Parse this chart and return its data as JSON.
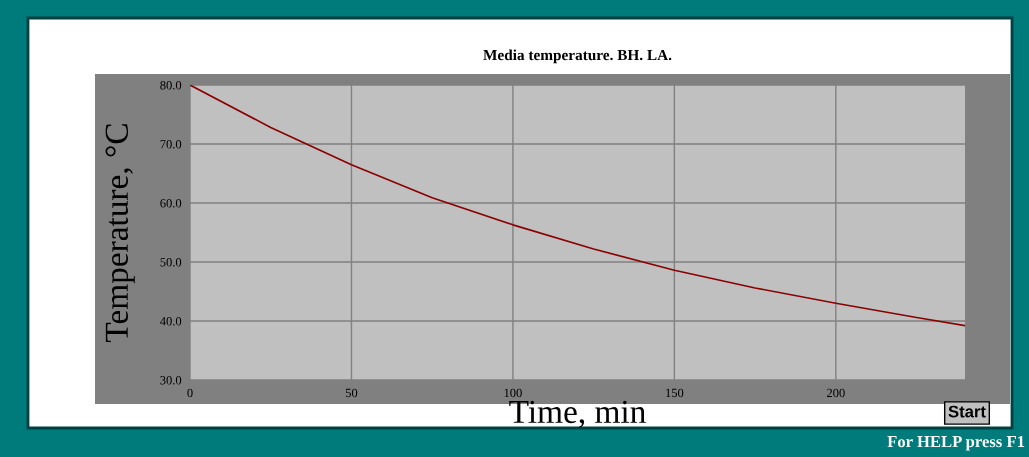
{
  "chart_data": {
    "type": "line",
    "title": "Media temperature. BH. LA.",
    "xlabel": "Time, min",
    "ylabel": "Temperature, °C",
    "x": [
      0,
      25,
      50,
      75,
      100,
      125,
      150,
      175,
      200,
      225,
      240
    ],
    "series": [
      {
        "color": "#8b0000",
        "values": [
          80,
          72.8,
          66.5,
          60.9,
          56.3,
          52.2,
          48.6,
          45.6,
          43,
          40.6,
          39.2
        ]
      }
    ],
    "xlim": [
      0,
      240
    ],
    "xticks": [
      0,
      50,
      100,
      150,
      200
    ],
    "ylim": [
      30,
      80
    ],
    "yticks": [
      {
        "value": 30,
        "label": "30.0"
      },
      {
        "value": 40,
        "label": "40.0"
      },
      {
        "value": 50,
        "label": "50.0"
      },
      {
        "value": 60,
        "label": "60.0"
      },
      {
        "value": 70,
        "label": "70.0"
      },
      {
        "value": 80,
        "label": "80.0"
      }
    ],
    "grid": true,
    "legend": false,
    "marker": "none",
    "line_style": "solid",
    "annotations": [
      "Start",
      "For HELP press F1"
    ]
  }
}
